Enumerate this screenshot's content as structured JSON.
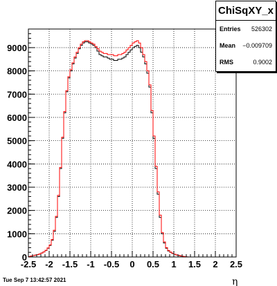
{
  "chart_data": {
    "type": "line",
    "title": "",
    "xlabel": "η",
    "ylabel": "",
    "xlim": [
      -2.5,
      2.5
    ],
    "ylim": [
      0,
      9800
    ],
    "xticks": [
      "-2.5",
      "-2",
      "-1.5",
      "-1",
      "-0.5",
      "0",
      "0.5",
      "1",
      "1.5",
      "2",
      "2.5"
    ],
    "yticks": [
      "0",
      "1000",
      "2000",
      "3000",
      "4000",
      "5000",
      "6000",
      "7000",
      "8000",
      "9000"
    ],
    "grid": true,
    "bin_width": 0.05,
    "series": [
      {
        "color": "#000000",
        "x": [
          -2.5,
          -2.45,
          -2.4,
          -2.35,
          -2.3,
          -2.25,
          -2.2,
          -2.15,
          -2.1,
          -2.05,
          -2.0,
          -1.95,
          -1.9,
          -1.85,
          -1.8,
          -1.75,
          -1.7,
          -1.65,
          -1.6,
          -1.55,
          -1.5,
          -1.45,
          -1.4,
          -1.35,
          -1.3,
          -1.25,
          -1.2,
          -1.15,
          -1.1,
          -1.05,
          -1.0,
          -0.95,
          -0.9,
          -0.85,
          -0.8,
          -0.75,
          -0.7,
          -0.65,
          -0.6,
          -0.55,
          -0.5,
          -0.45,
          -0.4,
          -0.35,
          -0.3,
          -0.25,
          -0.2,
          -0.15,
          -0.1,
          -0.05,
          0.0,
          0.05,
          0.1,
          0.15,
          0.2,
          0.25,
          0.3,
          0.35,
          0.4,
          0.45,
          0.5,
          0.55,
          0.6,
          0.65,
          0.7,
          0.75,
          0.8,
          0.85,
          0.9,
          0.95,
          1.0,
          1.05,
          1.1,
          1.15,
          1.2,
          1.25,
          1.3,
          1.35,
          1.4,
          1.45,
          1.5,
          1.55,
          1.6,
          1.65,
          1.7,
          1.75,
          1.8,
          1.85,
          1.9,
          1.95,
          2.0,
          2.05,
          2.1,
          2.15,
          2.2,
          2.25,
          2.3,
          2.35,
          2.4,
          2.45
        ],
        "y": [
          20,
          40,
          60,
          80,
          100,
          130,
          170,
          220,
          280,
          380,
          500,
          720,
          1100,
          1700,
          2600,
          3800,
          5100,
          6200,
          7100,
          7700,
          8000,
          8300,
          8550,
          8750,
          8950,
          9100,
          9200,
          9250,
          9250,
          9200,
          9150,
          9100,
          9000,
          8850,
          8700,
          8650,
          8600,
          8600,
          8550,
          8500,
          8500,
          8450,
          8450,
          8500,
          8500,
          8550,
          8600,
          8700,
          8800,
          8900,
          9000,
          9050,
          9100,
          9000,
          8800,
          8600,
          8300,
          7900,
          7300,
          6200,
          5100,
          3800,
          2700,
          1700,
          1000,
          600,
          380,
          260,
          200,
          150,
          110,
          80,
          60,
          40,
          20,
          10,
          5,
          0,
          0,
          0,
          0,
          0,
          0,
          0,
          0,
          0,
          0,
          0,
          0,
          0,
          0,
          0,
          0,
          0,
          0,
          0,
          0,
          0,
          0,
          0
        ]
      },
      {
        "color": "#ff0000",
        "x": [
          -2.5,
          -2.45,
          -2.4,
          -2.35,
          -2.3,
          -2.25,
          -2.2,
          -2.15,
          -2.1,
          -2.05,
          -2.0,
          -1.95,
          -1.9,
          -1.85,
          -1.8,
          -1.75,
          -1.7,
          -1.65,
          -1.6,
          -1.55,
          -1.5,
          -1.45,
          -1.4,
          -1.35,
          -1.3,
          -1.25,
          -1.2,
          -1.15,
          -1.1,
          -1.05,
          -1.0,
          -0.95,
          -0.9,
          -0.85,
          -0.8,
          -0.75,
          -0.7,
          -0.65,
          -0.6,
          -0.55,
          -0.5,
          -0.45,
          -0.4,
          -0.35,
          -0.3,
          -0.25,
          -0.2,
          -0.15,
          -0.1,
          -0.05,
          0.0,
          0.05,
          0.1,
          0.15,
          0.2,
          0.25,
          0.3,
          0.35,
          0.4,
          0.45,
          0.5,
          0.55,
          0.6,
          0.65,
          0.7,
          0.75,
          0.8,
          0.85,
          0.9,
          0.95,
          1.0,
          1.05,
          1.1,
          1.15,
          1.2,
          1.25,
          1.3,
          1.35,
          1.4,
          1.45,
          1.5,
          1.55,
          1.6,
          1.65,
          1.7,
          1.75,
          1.8,
          1.85,
          1.9,
          1.95,
          2.0,
          2.05,
          2.1,
          2.15,
          2.2,
          2.25,
          2.3,
          2.35,
          2.4,
          2.45
        ],
        "y": [
          20,
          40,
          60,
          80,
          100,
          130,
          170,
          220,
          290,
          390,
          520,
          750,
          1150,
          1750,
          2650,
          3850,
          5150,
          6250,
          7150,
          7750,
          8050,
          8350,
          8600,
          8800,
          9000,
          9150,
          9250,
          9300,
          9300,
          9250,
          9200,
          9150,
          9050,
          8950,
          8850,
          8800,
          8750,
          8750,
          8700,
          8700,
          8700,
          8650,
          8650,
          8700,
          8700,
          8750,
          8800,
          8900,
          9000,
          9100,
          9200,
          9250,
          9300,
          9200,
          9000,
          8700,
          8400,
          8000,
          7400,
          6300,
          5200,
          3900,
          2800,
          1800,
          1050,
          650,
          400,
          280,
          210,
          160,
          120,
          90,
          70,
          50,
          30,
          15,
          5,
          0,
          0,
          0,
          0,
          0,
          0,
          0,
          0,
          0,
          0,
          0,
          0,
          0,
          0,
          0,
          0,
          0,
          0,
          0,
          0,
          0,
          0,
          0
        ]
      }
    ]
  },
  "stats": {
    "title": "ChiSqXY_x",
    "rows": [
      {
        "label": "Entries",
        "value": "526302"
      },
      {
        "label": "Mean",
        "value": "−0.009709"
      },
      {
        "label": "RMS",
        "value": "0.9002"
      }
    ]
  },
  "footer": {
    "date": "Tue Sep  7 13:42:57 2021"
  }
}
